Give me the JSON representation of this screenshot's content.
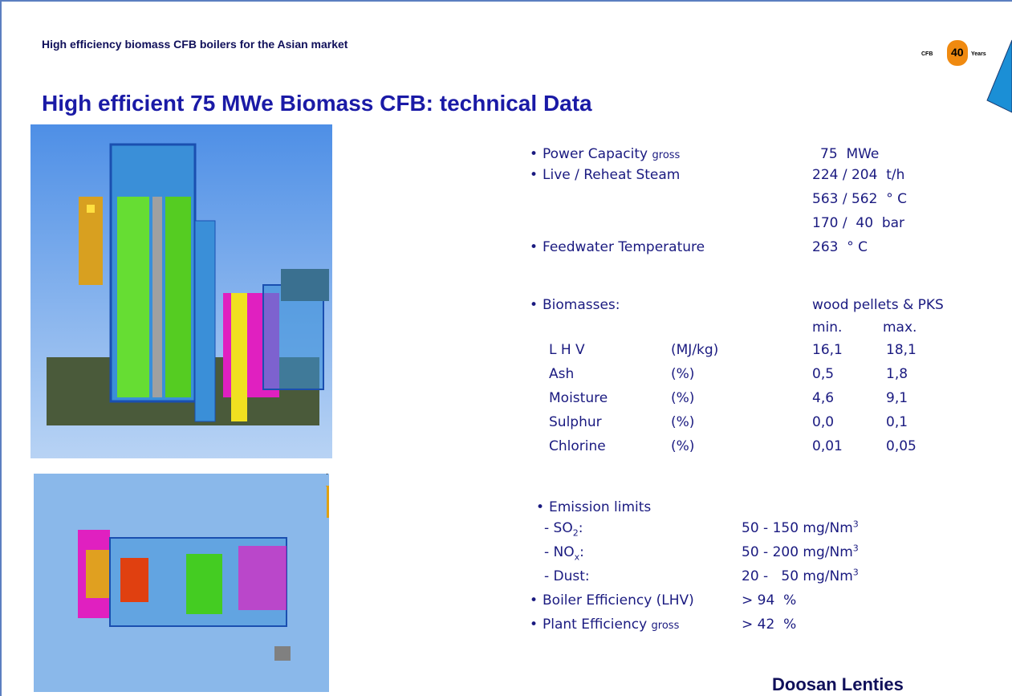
{
  "header": {
    "subtitle": "High efficiency biomass CFB boilers for the Asian market",
    "logo": {
      "left": "CFB",
      "number": "40",
      "right": "Years"
    }
  },
  "title": "High efficient 75 MWe Biomass CFB: technical Data",
  "specs": {
    "power": {
      "label": "Power Capacity",
      "qualifier": "gross",
      "value": "75  MWe"
    },
    "steam": {
      "label": "Live / Reheat Steam",
      "values": [
        "224 / 204  t/h",
        "563 / 562  ° C",
        "170 /  40  bar"
      ]
    },
    "feedwater": {
      "label": "Feedwater Temperature",
      "value": "263  ° C"
    },
    "biomass": {
      "label": "Biomasses:",
      "fuel": "wood pellets & PKS",
      "min": "min.",
      "max": "max.",
      "rows": [
        [
          "L H V",
          "(MJ/kg)",
          "16,1",
          "18,1"
        ],
        [
          "Ash",
          "(%)",
          "0,5",
          "1,8"
        ],
        [
          "Moisture",
          "(%)",
          "4,6",
          "9,1"
        ],
        [
          "Sulphur",
          "(%)",
          "0,0",
          "0,1"
        ],
        [
          "Chlorine",
          "(%)",
          "0,01",
          "0,05"
        ]
      ]
    },
    "emissions": {
      "label": "Emission limits",
      "rows": [
        {
          "name": [
            "- SO",
            "2",
            ":"
          ],
          "value": [
            "50 - 150 mg/Nm",
            "3"
          ]
        },
        {
          "name": [
            "- NO",
            "x",
            ":"
          ],
          "value": [
            "50 - 200 mg/Nm",
            "3"
          ]
        },
        {
          "name": [
            "- Dust:"
          ],
          "value": [
            "20 -   50 mg/Nm",
            "3"
          ]
        }
      ]
    },
    "boiler": {
      "label": "Boiler Efficiency (LHV)",
      "value": "> 94  %"
    },
    "plant": {
      "label": "Plant Efficiency",
      "qualifier": "gross",
      "value": "> 42  %"
    }
  },
  "footer": "Doosan Lenties"
}
